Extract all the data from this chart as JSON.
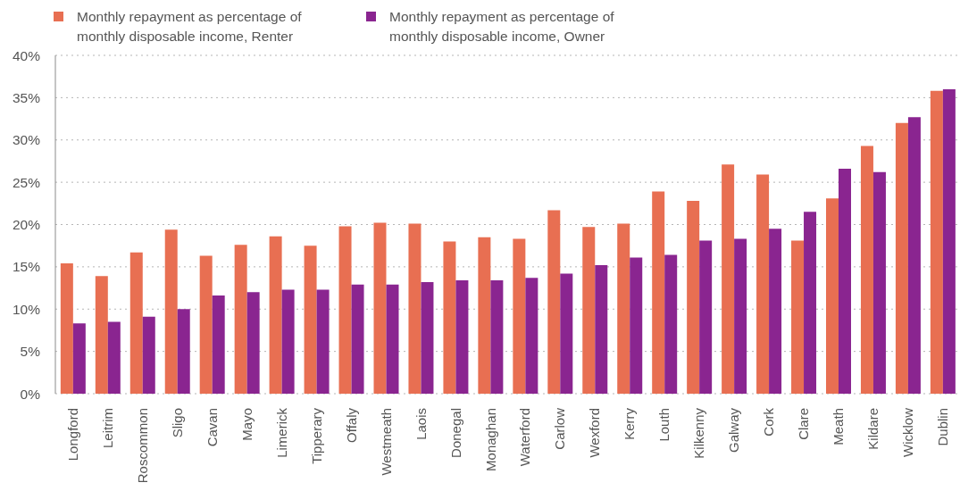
{
  "chart_data": {
    "type": "bar",
    "categories": [
      "Longford",
      "Leitrim",
      "Roscommon",
      "Sligo",
      "Cavan",
      "Mayo",
      "Limerick",
      "Tipperary",
      "Offaly",
      "Westmeath",
      "Laois",
      "Donegal",
      "Monaghan",
      "Waterford",
      "Carlow",
      "Wexford",
      "Kerry",
      "Louth",
      "Kilkenny",
      "Galway",
      "Cork",
      "Clare",
      "Meath",
      "Kildare",
      "Wicklow",
      "Dublin"
    ],
    "series": [
      {
        "name": "Monthly repayment as percentage of monthly disposable income, Renter",
        "color": "#e86f52",
        "values": [
          15.4,
          13.9,
          16.7,
          19.4,
          16.3,
          17.6,
          18.6,
          17.5,
          19.8,
          20.2,
          20.1,
          18.0,
          18.5,
          18.3,
          21.7,
          19.7,
          20.1,
          23.9,
          22.8,
          27.1,
          25.9,
          18.1,
          23.1,
          29.3,
          32.0,
          35.8
        ]
      },
      {
        "name": "Monthly repayment as percentage of monthly disposable income, Owner",
        "color": "#8a2590",
        "values": [
          8.3,
          8.5,
          9.1,
          10.0,
          11.6,
          12.0,
          12.3,
          12.3,
          12.9,
          12.9,
          13.2,
          13.4,
          13.4,
          13.7,
          14.2,
          15.2,
          16.1,
          16.4,
          18.1,
          18.3,
          19.5,
          21.5,
          26.6,
          26.2,
          32.7,
          36.0
        ]
      }
    ],
    "ylim": [
      0,
      40
    ],
    "yticks": [
      {
        "value": 0,
        "label": "0%"
      },
      {
        "value": 5,
        "label": "5%"
      },
      {
        "value": 10,
        "label": "10%"
      },
      {
        "value": 15,
        "label": "15%"
      },
      {
        "value": 20,
        "label": "20%"
      },
      {
        "value": 25,
        "label": "25%"
      },
      {
        "value": 30,
        "label": "30%"
      },
      {
        "value": 35,
        "label": "35%"
      },
      {
        "value": 40,
        "label": "40%"
      }
    ],
    "grid": "y",
    "legend": "top left"
  }
}
